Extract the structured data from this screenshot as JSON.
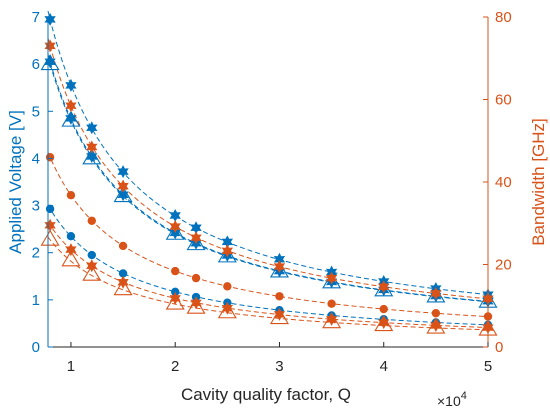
{
  "chart_data": {
    "type": "scatter",
    "xlabel": "Cavity quality factor, Q",
    "x_exponent_label": "×10",
    "x_exponent_power": "4",
    "ylabel_left": "Applied Voltage  [V]",
    "ylabel_right": "Bandwidth [GHz]",
    "xlim": [
      0.78,
      5.0
    ],
    "ylim_left": [
      0,
      7
    ],
    "ylim_right": [
      0,
      80
    ],
    "xticks": [
      1,
      2,
      3,
      4,
      5
    ],
    "xtick_labels": [
      "1",
      "2",
      "3",
      "4",
      "5"
    ],
    "yticks_left": [
      0,
      1,
      2,
      3,
      4,
      5,
      6,
      7
    ],
    "ytick_labels_left": [
      "0",
      "1",
      "2",
      "3",
      "4",
      "5",
      "6",
      "7"
    ],
    "yticks_right": [
      0,
      20,
      40,
      60,
      80
    ],
    "ytick_labels_right": [
      "0",
      "20",
      "40",
      "60",
      "80"
    ],
    "grid": false,
    "colors": {
      "left_axis": "#0072BD",
      "right_axis": "#D95319"
    },
    "x": [
      0.8,
      1.0,
      1.2,
      1.5,
      2.0,
      2.2,
      2.5,
      3.0,
      3.5,
      4.0,
      4.5,
      5.0
    ],
    "series": [
      {
        "axis": "left",
        "color": "#0072BD",
        "marker": "hexagram",
        "values": [
          6.95,
          5.55,
          4.65,
          3.72,
          2.79,
          2.53,
          2.23,
          1.86,
          1.59,
          1.39,
          1.24,
          1.11
        ]
      },
      {
        "axis": "left",
        "color": "#0072BD",
        "marker": "hexagram",
        "values": [
          6.05,
          4.85,
          4.04,
          3.23,
          2.42,
          2.2,
          1.94,
          1.61,
          1.38,
          1.21,
          1.08,
          0.97
        ]
      },
      {
        "axis": "left",
        "color": "#0072BD",
        "marker": "triangle",
        "values": [
          6.0,
          4.8,
          4.0,
          3.2,
          2.4,
          2.18,
          1.92,
          1.6,
          1.37,
          1.2,
          1.07,
          0.96
        ]
      },
      {
        "axis": "left",
        "color": "#0072BD",
        "marker": "circle",
        "values": [
          2.93,
          2.35,
          1.95,
          1.56,
          1.17,
          1.06,
          0.94,
          0.78,
          0.67,
          0.59,
          0.52,
          0.47
        ]
      },
      {
        "axis": "right",
        "color": "#D95319",
        "marker": "hexagram",
        "values": [
          73,
          58.5,
          48.5,
          39,
          29.2,
          26.5,
          23.3,
          19.5,
          16.7,
          14.6,
          13,
          11.7
        ]
      },
      {
        "axis": "right",
        "color": "#D95319",
        "marker": "circle",
        "values": [
          46,
          36.8,
          30.6,
          24.5,
          18.4,
          16.7,
          14.7,
          12.3,
          10.5,
          9.2,
          8.2,
          7.4
        ]
      },
      {
        "axis": "right",
        "color": "#D95319",
        "marker": "hexagram",
        "values": [
          29.5,
          23.6,
          19.7,
          15.7,
          11.8,
          10.7,
          9.4,
          7.9,
          6.7,
          5.9,
          5.2,
          4.7
        ]
      },
      {
        "axis": "right",
        "color": "#D95319",
        "marker": "triangle",
        "values": [
          26,
          21,
          17.5,
          14,
          10.5,
          9.5,
          8.4,
          7,
          6,
          5.3,
          4.7,
          4.2
        ]
      }
    ]
  }
}
